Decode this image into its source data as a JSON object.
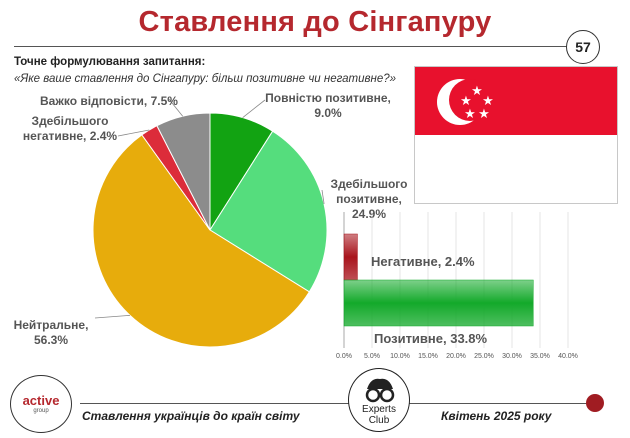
{
  "header": {
    "title": "Ставлення до Сінгапуру",
    "page_number": "57"
  },
  "question": {
    "label": "Точне формулювання запитання:",
    "text": "«Яке ваше ставлення до Сінгапуру: більш позитивне чи негативне?»"
  },
  "chart_data": [
    {
      "type": "pie",
      "categories": [
        "Повністю позитивне",
        "Здебільшого позитивне",
        "Нейтральне",
        "Здебільшого негативне",
        "Важко відповісти"
      ],
      "values": [
        9.0,
        24.9,
        56.3,
        2.4,
        7.5
      ],
      "colors": [
        "#12a312",
        "#55dd7d",
        "#e7ac0c",
        "#dc2c3a",
        "#8c8c8c"
      ],
      "labels": [
        "Повністю позитивне,\n9.0%",
        "Здебільшого\nпозитивне,\n24.9%",
        "Нейтральне,\n56.3%",
        "Здебільшого\nнегативне, 2.4%",
        "Важко відповісти, 7.5%"
      ],
      "legend": "none"
    },
    {
      "type": "bar",
      "orientation": "horizontal",
      "categories": [
        "Негативне",
        "Позитивне"
      ],
      "values": [
        2.4,
        33.8
      ],
      "colors": [
        "#a8141c",
        "#13a92a"
      ],
      "labels": [
        "Негативне, 2.4%",
        "Позитивне, 33.8%"
      ],
      "xlim": [
        0,
        40
      ],
      "xticks": [
        "0.0%",
        "5.0%",
        "10.0%",
        "15.0%",
        "20.0%",
        "25.0%",
        "30.0%",
        "35.0%",
        "40.0%"
      ],
      "grid": true
    }
  ],
  "flag": {
    "name": "singapore-flag",
    "colors": [
      "#e8112d",
      "#ffffff"
    ]
  },
  "footer": {
    "logo_top": "active",
    "logo_bottom": "group",
    "left_text": "Ставлення українців до країн світу",
    "experts_line1": "Experts",
    "experts_line2": "Club",
    "right_text": "Квітень 2025 року"
  }
}
